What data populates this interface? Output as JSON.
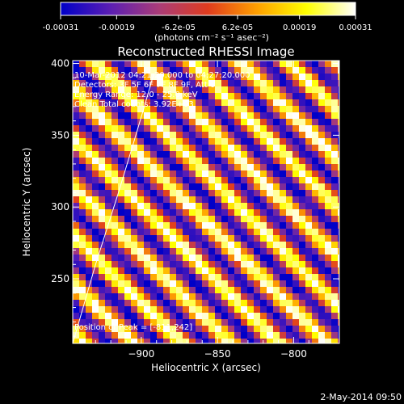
{
  "colorbar": {
    "tick_labels": [
      "-0.00031",
      "-0.00019",
      "-6.2e-05",
      "6.2e-05",
      "0.00019",
      "0.00031"
    ],
    "unit_label": "(photons cm⁻² s⁻¹ asec⁻²)",
    "colormap": [
      "#0000c8",
      "#5a1eb4",
      "#aa3c78",
      "#e03c1e",
      "#ffa000",
      "#ffff00",
      "#ffffff"
    ]
  },
  "chart_data": {
    "type": "heatmap",
    "title": "Reconstructed RHESSI Image",
    "xlabel": "Heliocentric X (arcsec)",
    "ylabel": "Heliocentric Y (arcsec)",
    "xlim": [
      -945,
      -770
    ],
    "ylim": [
      205,
      402
    ],
    "x_ticks": [
      -900,
      -850,
      -800
    ],
    "y_ticks": [
      250,
      300,
      350,
      400
    ],
    "color_range": [
      -0.00031,
      0.00031
    ],
    "pattern": "diagonal fringe stripes",
    "annotations": {
      "time_range": "10-Mar-2012 04:21:20.000 to 04:27:20.000",
      "detectors": "Detectors: 3F 5F 6F 7F 8F 9F, Att 0",
      "energy": "Energy Range: 12.0 - 25.0 keV",
      "clean": "Clean    Total counts: 3.92E+03",
      "peak": "Position of Peak = [-811,242]"
    },
    "limb_curve": {
      "x": [
        -945,
        -930,
        -915,
        -905,
        -898,
        -892
      ],
      "y": [
        205,
        260,
        310,
        345,
        370,
        392
      ]
    }
  },
  "footer": {
    "date": "2-May-2014 09:50"
  }
}
